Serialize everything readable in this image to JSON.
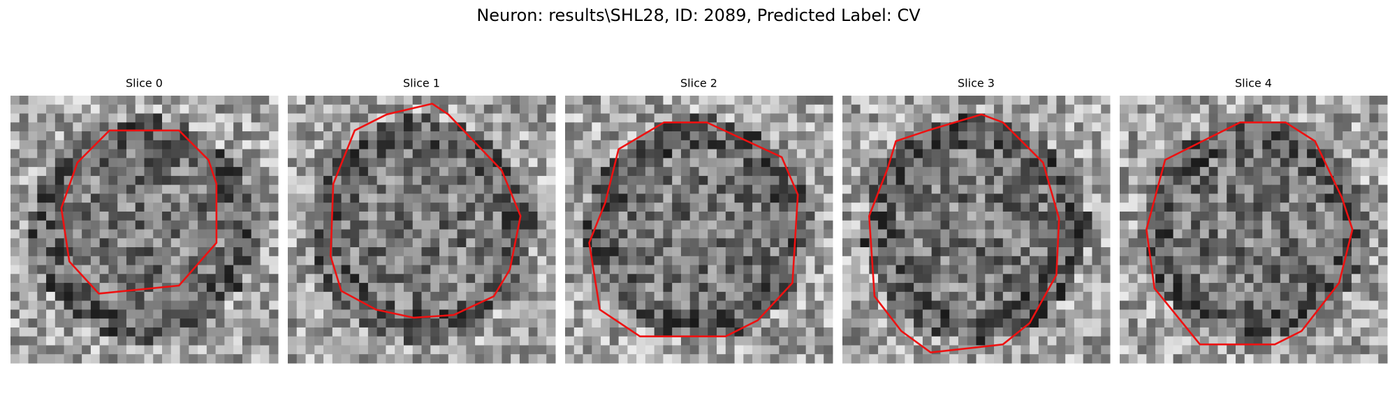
{
  "title": "Neuron: results\\SHL28, ID: 2089, Predicted Label: CV",
  "panels": [
    {
      "title": "Slice 0"
    },
    {
      "title": "Slice 1"
    },
    {
      "title": "Slice 2"
    },
    {
      "title": "Slice 3"
    },
    {
      "title": "Slice 4"
    }
  ]
}
